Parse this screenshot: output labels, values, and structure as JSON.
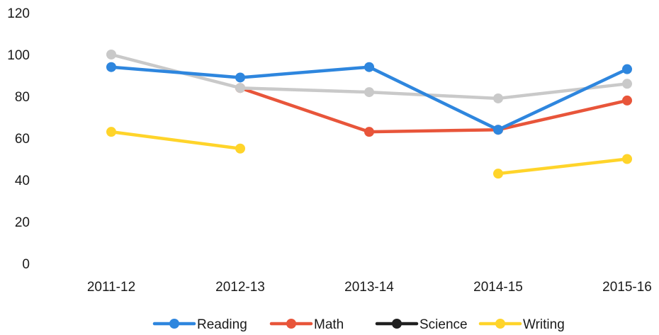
{
  "chart_data": {
    "type": "line",
    "categories": [
      "2011-12",
      "2012-13",
      "2013-14",
      "2014-15",
      "2015-16"
    ],
    "ylim": [
      0,
      120
    ],
    "yticks": [
      0,
      20,
      40,
      60,
      80,
      100,
      120
    ],
    "grid": false,
    "legend_position": "bottom",
    "series": [
      {
        "name": "Reading",
        "color": "#2E86DE",
        "values": [
          94,
          89,
          94,
          64,
          93
        ]
      },
      {
        "name": "Math",
        "color": "#E8553A",
        "values": [
          null,
          84,
          63,
          64,
          78
        ]
      },
      {
        "name": "Science",
        "color": "#202020",
        "values": [
          null,
          null,
          null,
          null,
          null
        ]
      },
      {
        "name": "Writing",
        "color": "#FFD42A",
        "values": [
          63,
          55,
          null,
          43,
          50
        ]
      },
      {
        "color": "#C9C9C9",
        "values": [
          100,
          84,
          82,
          79,
          86
        ]
      }
    ],
    "draw_order": [
      3,
      1,
      4,
      0
    ]
  }
}
